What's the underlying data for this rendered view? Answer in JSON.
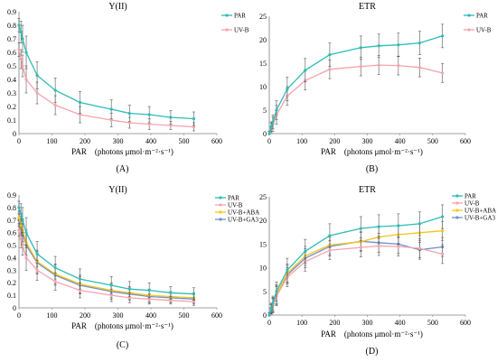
{
  "chart_data": [
    {
      "type": "line",
      "panel_label": "(A)",
      "title": "Y(II)",
      "xlabel": "PAR　(photons μmol·m⁻²·s⁻¹)",
      "ylabel": "",
      "xlim": [
        0,
        600
      ],
      "ylim": [
        0,
        0.9
      ],
      "xticks": [
        "0",
        "100",
        "200",
        "300",
        "400",
        "500",
        "600"
      ],
      "yticks": [
        "0",
        "0.1",
        "0.2",
        "0.3",
        "0.4",
        "0.5",
        "0.6",
        "0.7",
        "0.8",
        "0.9"
      ],
      "x": [
        0,
        6,
        11,
        22,
        55,
        110,
        185,
        280,
        335,
        395,
        460,
        530
      ],
      "legend_position": "top-right",
      "series": [
        {
          "name": "PAR",
          "color": "#2dbdb5",
          "marker": "circle",
          "values": [
            0.8,
            0.75,
            0.7,
            0.6,
            0.43,
            0.32,
            0.23,
            0.18,
            0.15,
            0.14,
            0.12,
            0.11
          ],
          "errors": [
            0.05,
            0.08,
            0.1,
            0.12,
            0.1,
            0.09,
            0.08,
            0.07,
            0.06,
            0.06,
            0.05,
            0.05
          ]
        },
        {
          "name": "UV-B",
          "color": "#f4a3ad",
          "marker": "circle",
          "values": [
            0.62,
            0.55,
            0.5,
            0.4,
            0.3,
            0.21,
            0.14,
            0.1,
            0.08,
            0.07,
            0.06,
            0.05
          ],
          "errors": [
            0.05,
            0.07,
            0.08,
            0.1,
            0.08,
            0.07,
            0.06,
            0.05,
            0.04,
            0.04,
            0.03,
            0.03
          ]
        }
      ]
    },
    {
      "type": "line",
      "panel_label": "(B)",
      "title": "ETR",
      "xlabel": "PAR　(photons μmol·m⁻²·s⁻¹)",
      "ylabel": "",
      "xlim": [
        0,
        600
      ],
      "ylim": [
        0,
        25
      ],
      "xticks": [
        "0",
        "100",
        "200",
        "300",
        "400",
        "500",
        "600"
      ],
      "yticks": [
        "0",
        "5",
        "10",
        "15",
        "20",
        "25"
      ],
      "x": [
        0,
        6,
        11,
        22,
        55,
        110,
        185,
        280,
        335,
        395,
        460,
        530
      ],
      "legend_position": "top-right",
      "series": [
        {
          "name": "PAR",
          "color": "#2dbdb5",
          "marker": "circle",
          "values": [
            0,
            1.5,
            2.5,
            5,
            9.5,
            13.5,
            16.8,
            18.3,
            18.7,
            18.9,
            19.3,
            20.8
          ],
          "errors": [
            0.5,
            1,
            1.5,
            2,
            2.5,
            2.5,
            2.5,
            2.5,
            2.5,
            2.5,
            2.5,
            2.5
          ]
        },
        {
          "name": "UV-B",
          "color": "#f4a3ad",
          "marker": "circle",
          "values": [
            0,
            1.2,
            2,
            4,
            8,
            11.3,
            13.7,
            14.3,
            14.6,
            14.5,
            14.1,
            12.9
          ],
          "errors": [
            0.5,
            1,
            1.5,
            2,
            2,
            2,
            2,
            2,
            2,
            2,
            2,
            2
          ]
        }
      ]
    },
    {
      "type": "line",
      "panel_label": "(C)",
      "title": "Y(II)",
      "xlabel": "PAR　(photons μmol·m⁻²·s⁻¹)",
      "ylabel": "",
      "xlim": [
        0,
        600
      ],
      "ylim": [
        0,
        0.9
      ],
      "xticks": [
        "0",
        "100",
        "200",
        "300",
        "400",
        "500",
        "600"
      ],
      "yticks": [
        "0",
        "0.1",
        "0.2",
        "0.3",
        "0.4",
        "0.5",
        "0.6",
        "0.7",
        "0.8",
        "0.9"
      ],
      "x": [
        0,
        6,
        11,
        22,
        55,
        110,
        185,
        280,
        335,
        395,
        460,
        530
      ],
      "legend_position": "top-right",
      "series": [
        {
          "name": "PAR",
          "color": "#2dbdb5",
          "marker": "circle",
          "values": [
            0.8,
            0.75,
            0.7,
            0.6,
            0.43,
            0.32,
            0.23,
            0.18,
            0.15,
            0.14,
            0.12,
            0.11
          ],
          "errors": [
            0.05,
            0.08,
            0.1,
            0.12,
            0.1,
            0.09,
            0.08,
            0.07,
            0.06,
            0.06,
            0.05,
            0.05
          ]
        },
        {
          "name": "UV-B",
          "color": "#f4a3ad",
          "marker": "circle",
          "values": [
            0.62,
            0.55,
            0.5,
            0.4,
            0.3,
            0.21,
            0.14,
            0.1,
            0.08,
            0.07,
            0.06,
            0.05
          ],
          "errors": [
            0.05,
            0.07,
            0.08,
            0.1,
            0.08,
            0.07,
            0.06,
            0.05,
            0.04,
            0.04,
            0.03,
            0.03
          ]
        },
        {
          "name": "UV-B+ABA",
          "color": "#f5c518",
          "marker": "circle",
          "values": [
            0.72,
            0.66,
            0.62,
            0.52,
            0.37,
            0.27,
            0.19,
            0.14,
            0.12,
            0.1,
            0.09,
            0.08
          ],
          "errors": [
            0.05,
            0.07,
            0.09,
            0.1,
            0.09,
            0.08,
            0.07,
            0.06,
            0.05,
            0.05,
            0.04,
            0.04
          ]
        },
        {
          "name": "UV-B+GA3",
          "color": "#6f8fce",
          "marker": "circle",
          "values": [
            0.7,
            0.64,
            0.6,
            0.5,
            0.36,
            0.26,
            0.18,
            0.13,
            0.11,
            0.09,
            0.08,
            0.07
          ],
          "errors": [
            0.05,
            0.07,
            0.09,
            0.1,
            0.09,
            0.08,
            0.07,
            0.06,
            0.05,
            0.05,
            0.04,
            0.04
          ]
        }
      ]
    },
    {
      "type": "line",
      "panel_label": "(D)",
      "title": "ETR",
      "xlabel": "PAR　(photons μmol·m⁻²·s⁻¹)",
      "ylabel": "",
      "xlim": [
        0,
        600
      ],
      "ylim": [
        0,
        25
      ],
      "xticks": [
        "0",
        "100",
        "200",
        "300",
        "400",
        "500",
        "600"
      ],
      "yticks": [
        "0",
        "5",
        "10",
        "15",
        "20",
        "25"
      ],
      "x": [
        0,
        6,
        11,
        22,
        55,
        110,
        185,
        280,
        335,
        395,
        460,
        530
      ],
      "legend_position": "top-right",
      "series": [
        {
          "name": "PAR",
          "color": "#2dbdb5",
          "marker": "circle",
          "values": [
            0,
            1.5,
            2.5,
            5,
            9.5,
            13.5,
            16.8,
            18.3,
            18.7,
            18.9,
            19.3,
            20.8
          ],
          "errors": [
            0.5,
            1,
            1.5,
            2,
            2.5,
            2.5,
            2.5,
            2.5,
            2.5,
            2.5,
            2.5,
            2.5
          ]
        },
        {
          "name": "UV-B",
          "color": "#f4a3ad",
          "marker": "circle",
          "values": [
            0,
            1.2,
            2,
            4,
            8,
            11.3,
            13.7,
            14.3,
            14.6,
            14.5,
            14.1,
            12.9
          ],
          "errors": [
            0.5,
            1,
            1.5,
            2,
            2,
            2,
            2,
            2,
            2,
            2,
            2,
            2
          ]
        },
        {
          "name": "UV-B+ABA",
          "color": "#f5c518",
          "marker": "circle",
          "values": [
            0,
            1.3,
            2.2,
            4.4,
            8.8,
            12.5,
            14.8,
            15.5,
            16.5,
            17.0,
            17.4,
            17.8
          ],
          "errors": [
            0.5,
            1,
            1.5,
            2,
            2,
            2,
            2,
            2,
            2,
            2,
            2,
            2
          ]
        },
        {
          "name": "UV-B+GA3",
          "color": "#6f8fce",
          "marker": "circle",
          "values": [
            0,
            1.3,
            2.1,
            4.2,
            8.5,
            12.0,
            14.5,
            15.6,
            15.3,
            15.0,
            13.8,
            14.4
          ],
          "errors": [
            0.5,
            1,
            1.5,
            2,
            2,
            2,
            2,
            2,
            2,
            2,
            2,
            2
          ]
        }
      ]
    }
  ]
}
